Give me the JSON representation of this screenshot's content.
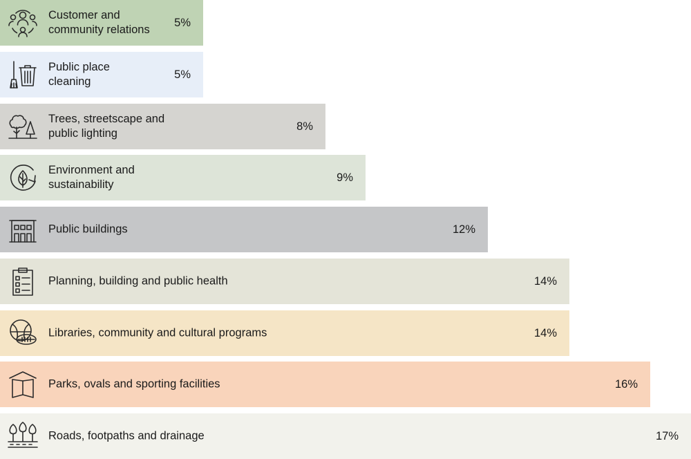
{
  "chart_data": {
    "type": "bar",
    "orientation": "horizontal",
    "unit": "%",
    "categories": [
      "Customer and\ncommunity relations",
      "Public place\ncleaning",
      "Trees, streetscape and\npublic lighting",
      "Environment and\nsustainability",
      "Public buildings",
      "Planning, building and public health",
      "Libraries, community and cultural programs",
      "Parks, ovals and sporting facilities",
      "Roads, footpaths and drainage"
    ],
    "values": [
      5,
      5,
      8,
      9,
      12,
      14,
      14,
      16,
      17
    ],
    "value_labels": [
      "5%",
      "5%",
      "8%",
      "9%",
      "12%",
      "14%",
      "14%",
      "16%",
      "17%"
    ],
    "colors": [
      "#bfd3b4",
      "#e7eef8",
      "#d5d4d0",
      "#dde4d8",
      "#c5c6c8",
      "#e4e4d8",
      "#f5e5c6",
      "#f9d4bb",
      "#f2f2ec"
    ],
    "icons": [
      "people-network-icon",
      "bin-broom-icon",
      "trees-icon",
      "leaf-cycle-icon",
      "building-icon",
      "clipboard-checklist-icon",
      "sports-balls-icon",
      "open-book-icon",
      "roadside-trees-icon"
    ],
    "title": "",
    "xlabel": "",
    "ylabel": "",
    "grid": false,
    "legend": "none"
  }
}
